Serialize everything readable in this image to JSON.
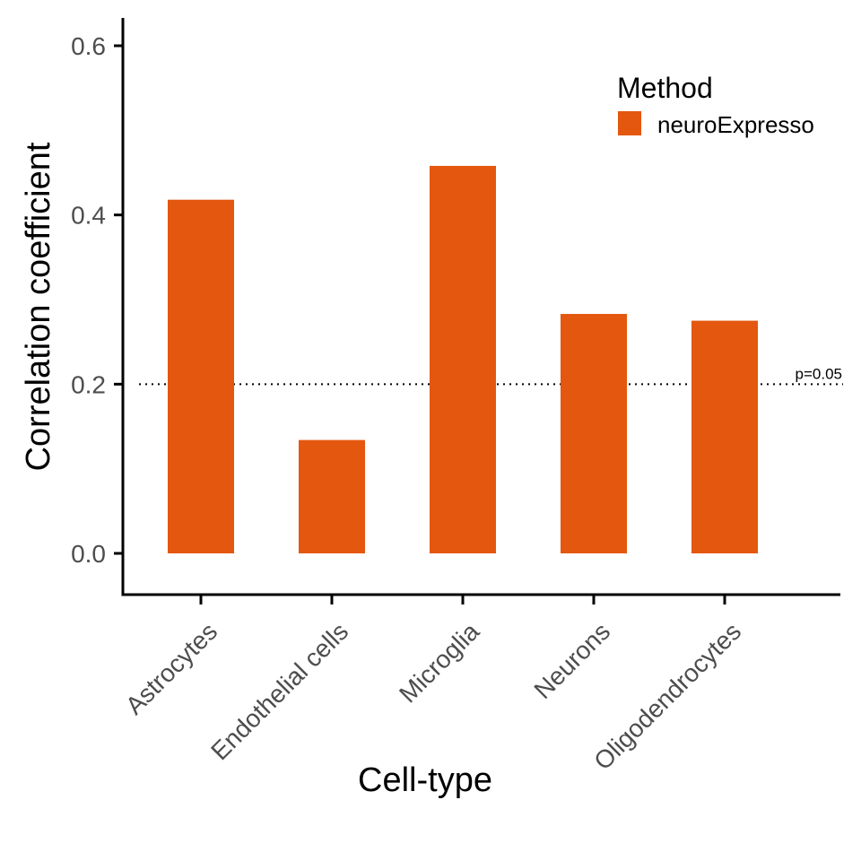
{
  "chart_data": {
    "type": "bar",
    "xlabel": "Cell-type",
    "ylabel": "Correlation coefficient",
    "categories": [
      "Astrocytes",
      "Endothelial cells",
      "Microglia",
      "Neurons",
      "Oligodendrocytes"
    ],
    "series": [
      {
        "name": "neuroExpresso",
        "values": [
          0.418,
          0.134,
          0.458,
          0.283,
          0.275
        ],
        "color": "#E4570F"
      }
    ],
    "ylim": [
      -0.05,
      0.62
    ],
    "yticks": [
      "0.0",
      "0.2",
      "0.4",
      "0.6"
    ],
    "ytick_values": [
      0.0,
      0.2,
      0.4,
      0.6
    ],
    "grid": false,
    "legend": {
      "title": "Method",
      "position": "top-right"
    },
    "reference_line": {
      "value": 0.2,
      "style": "dotted",
      "label": "p=0.05"
    }
  }
}
